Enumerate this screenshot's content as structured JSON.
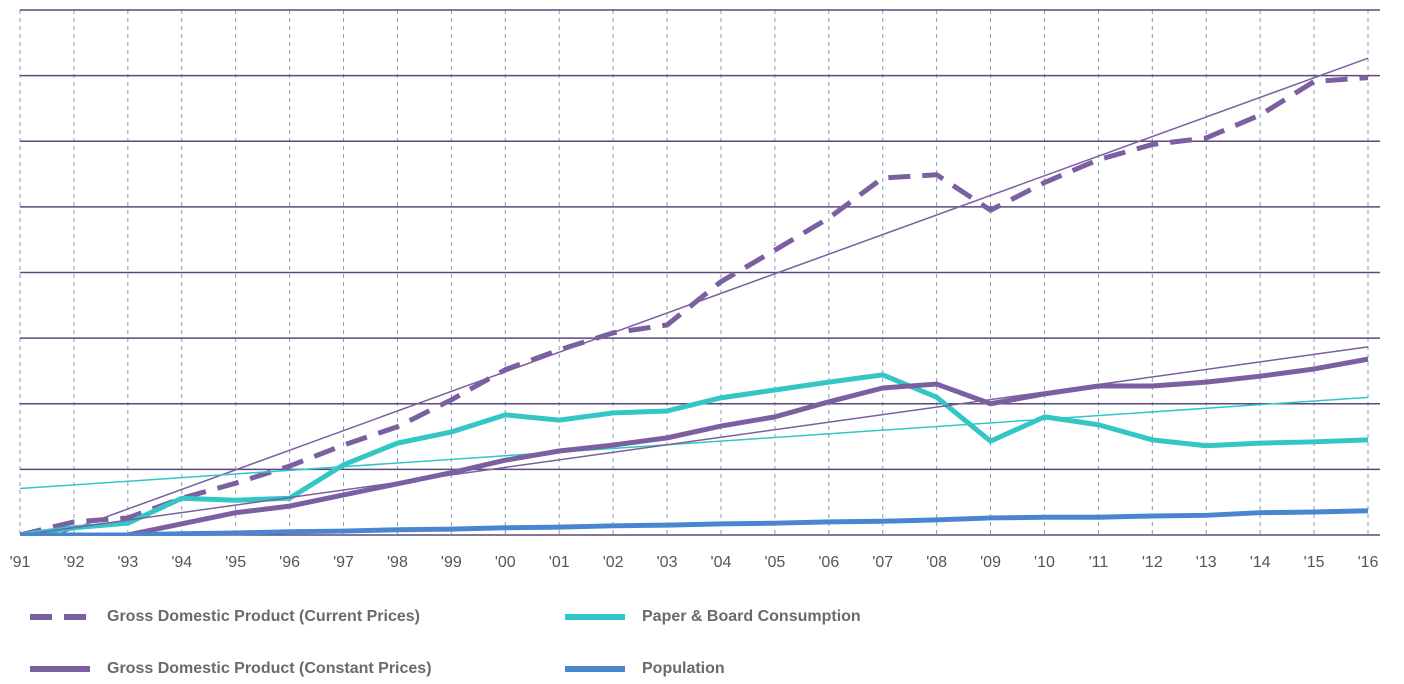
{
  "chart_data": {
    "type": "line",
    "categories": [
      "'91",
      "'92",
      "'93",
      "'94",
      "'95",
      "'96",
      "'97",
      "'98",
      "'99",
      "'00",
      "'01",
      "'02",
      "'03",
      "'04",
      "'05",
      "'06",
      "'07",
      "'08",
      "'09",
      "'10",
      "'11",
      "'12",
      "'13",
      "'14",
      "'15",
      "'16"
    ],
    "series": [
      {
        "name": "Gross Domestic Product (Current Prices)",
        "color": "#7b5fa0",
        "dashed": true,
        "trendline": true,
        "values": [
          0,
          0.2,
          0.26,
          0.56,
          0.79,
          1.05,
          1.37,
          1.65,
          2.06,
          2.52,
          2.82,
          3.08,
          3.2,
          3.86,
          4.34,
          4.83,
          5.44,
          5.49,
          4.95,
          5.37,
          5.72,
          5.95,
          6.05,
          6.4,
          6.91,
          6.97
        ]
      },
      {
        "name": "Paper & Board Consumption",
        "color": "#33c6c6",
        "dashed": false,
        "trendline": true,
        "values": [
          0,
          0.11,
          0.18,
          0.56,
          0.53,
          0.56,
          1.07,
          1.4,
          1.57,
          1.83,
          1.75,
          1.86,
          1.89,
          2.09,
          2.21,
          2.33,
          2.44,
          2.1,
          1.43,
          1.8,
          1.68,
          1.45,
          1.36,
          1.4,
          1.42,
          1.45
        ]
      },
      {
        "name": "Gross Domestic Product (Constant Prices)",
        "color": "#7b5fa0",
        "dashed": false,
        "trendline": true,
        "values": [
          0,
          0,
          0,
          0.17,
          0.34,
          0.44,
          0.61,
          0.78,
          0.95,
          1.14,
          1.28,
          1.37,
          1.48,
          1.66,
          1.8,
          2.03,
          2.24,
          2.3,
          2.0,
          2.15,
          2.27,
          2.27,
          2.33,
          2.42,
          2.53,
          2.68
        ]
      },
      {
        "name": "Population",
        "color": "#4a86d0",
        "dashed": false,
        "trendline": false,
        "values": [
          0,
          0,
          0,
          0.02,
          0.03,
          0.05,
          0.06,
          0.08,
          0.09,
          0.11,
          0.12,
          0.14,
          0.15,
          0.17,
          0.18,
          0.2,
          0.21,
          0.23,
          0.26,
          0.27,
          0.27,
          0.29,
          0.3,
          0.34,
          0.35,
          0.37
        ]
      }
    ],
    "ylim": [
      0,
      8
    ],
    "yticks": [
      0,
      1,
      2,
      3,
      4,
      5,
      6,
      7,
      8
    ],
    "grid": true
  }
}
